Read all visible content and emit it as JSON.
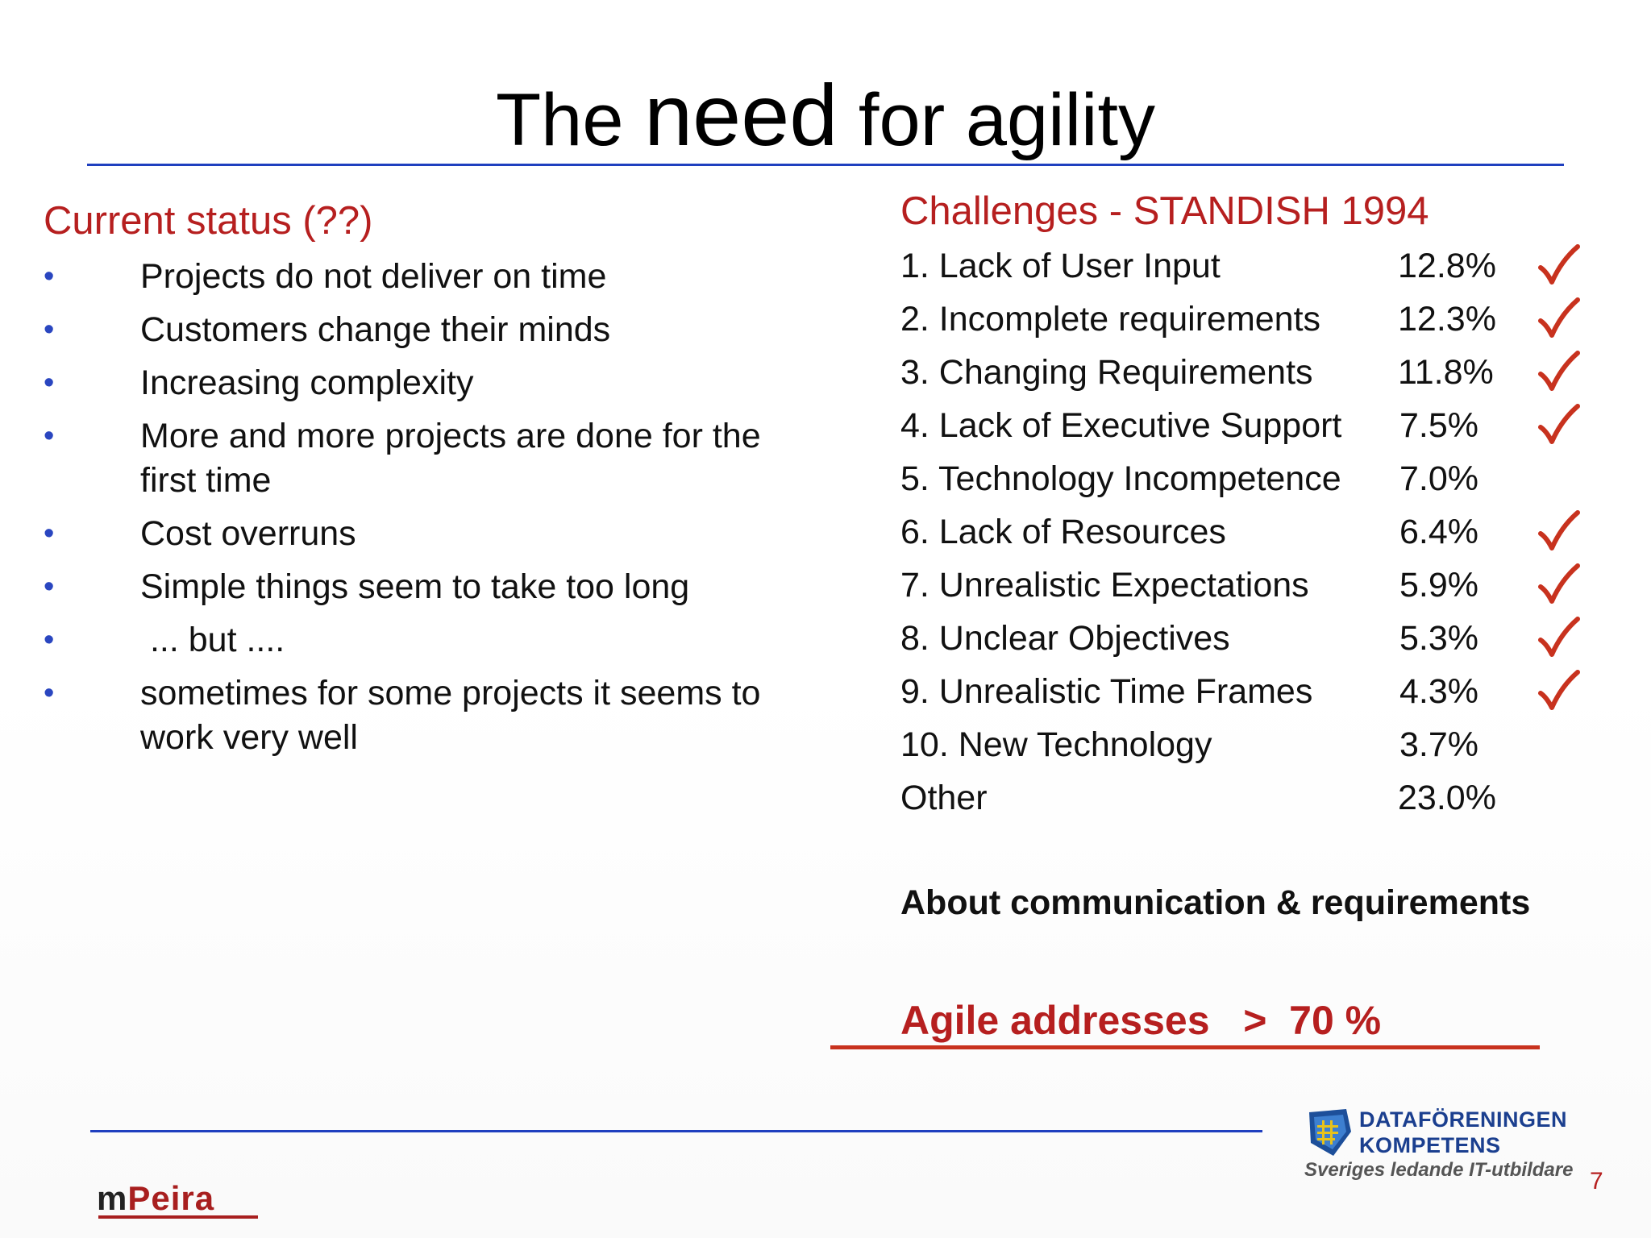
{
  "title": {
    "prefix": "The ",
    "emph": "need",
    "suffix": " for agility"
  },
  "left": {
    "heading": "Current status (??)",
    "bullet_symbol": "•",
    "bullets": [
      "Projects do not deliver on time",
      "Customers change their minds",
      "Increasing complexity",
      "More and more projects are done for the first time",
      "Cost overruns",
      "Simple things seem to take too long",
      " ... but ....",
      "sometimes for some projects it seems to work very well"
    ]
  },
  "right": {
    "heading": "Challenges - STANDISH 1994",
    "rows": [
      {
        "label": "1. Lack of User Input",
        "percent": "12.8%",
        "checked": true
      },
      {
        "label": "2. Incomplete requirements",
        "percent": "12.3%",
        "checked": true
      },
      {
        "label": "3. Changing Requirements",
        "percent": "11.8%",
        "checked": true
      },
      {
        "label": "4. Lack of Executive Support",
        "percent": "7.5%",
        "checked": true
      },
      {
        "label": "5. Technology Incompetence",
        "percent": "7.0%",
        "checked": false
      },
      {
        "label": "6. Lack of Resources",
        "percent": "6.4%",
        "checked": true
      },
      {
        "label": "7. Unrealistic Expectations",
        "percent": "5.9%",
        "checked": true
      },
      {
        "label": "8. Unclear Objectives",
        "percent": "5.3%",
        "checked": true
      },
      {
        "label": "9. Unrealistic Time Frames",
        "percent": "4.3%",
        "checked": true
      },
      {
        "label": "10. New Technology",
        "percent": "3.7%",
        "checked": false
      },
      {
        "label": "Other",
        "percent": "23.0%",
        "checked": false
      }
    ],
    "about": "About communication & requirements",
    "agile": "Agile addresses   >  70 %"
  },
  "footer": {
    "mpeira_m": "m",
    "mpeira_rest": "Peira",
    "logo_line1": "DATAFÖRENINGEN",
    "logo_line2": "KOMPETENS",
    "logo_sub": "Sveriges ledande IT-utbildare",
    "page_number": "7"
  },
  "colors": {
    "accent_red": "#b61f1f",
    "rule_blue": "#1f3fbf",
    "bullet_blue": "#2a46c0",
    "check_red": "#c8321e"
  }
}
